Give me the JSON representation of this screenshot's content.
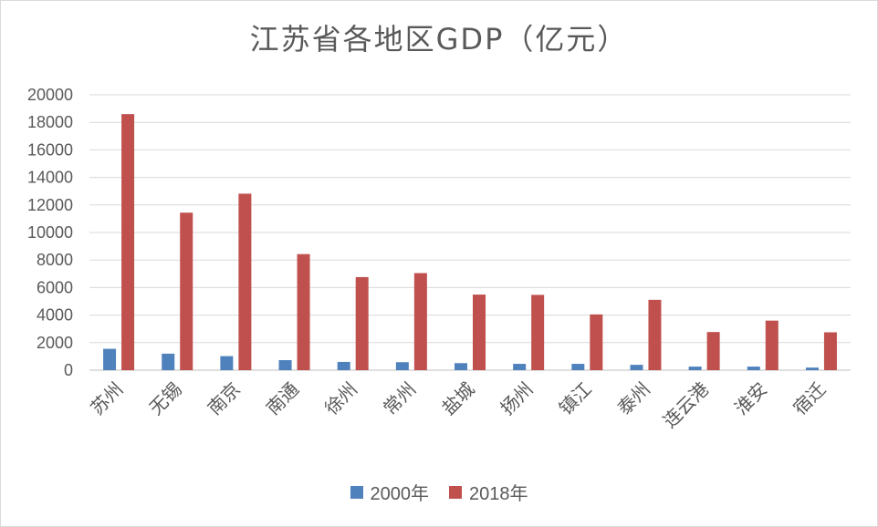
{
  "chart_data": {
    "type": "bar",
    "title": "江苏省各地区GDP（亿元）",
    "xlabel": "",
    "ylabel": "",
    "ylim": [
      0,
      20000
    ],
    "y_ticks": [
      0,
      2000,
      4000,
      6000,
      8000,
      10000,
      12000,
      14000,
      16000,
      18000,
      20000
    ],
    "grid": true,
    "legend_position": "bottom",
    "categories": [
      "苏州",
      "无锡",
      "南京",
      "南通",
      "徐州",
      "常州",
      "盐城",
      "扬州",
      "镇江",
      "泰州",
      "连云港",
      "淮安",
      "宿迁"
    ],
    "series": [
      {
        "name": "2000年",
        "color": "#4f81bd",
        "values": [
          1550,
          1200,
          1020,
          730,
          600,
          580,
          510,
          460,
          460,
          390,
          260,
          260,
          190
        ]
      },
      {
        "name": "2018年",
        "color": "#c0504d",
        "values": [
          18600,
          11440,
          12820,
          8430,
          6760,
          7050,
          5490,
          5470,
          4050,
          5110,
          2770,
          3600,
          2750
        ]
      }
    ]
  }
}
